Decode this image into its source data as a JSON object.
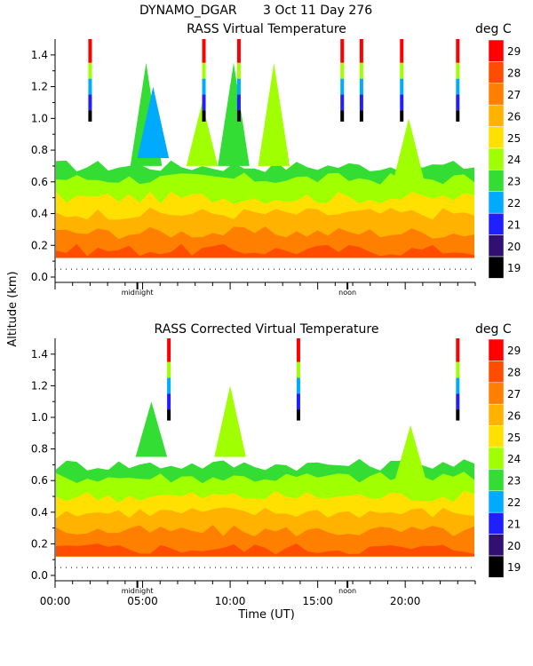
{
  "header": {
    "station": "DYNAMO_DGAR",
    "date": "3 Oct 11 Day 276"
  },
  "shared": {
    "ylabel": "Altitude (km)",
    "xlabel": "Time (UT)",
    "x_ticks": [
      "00:00",
      "05:00",
      "10:00",
      "15:00",
      "20:00"
    ],
    "x_tick_hours": [
      0,
      5,
      10,
      15,
      20
    ],
    "marker_labels": [
      {
        "text": "midnight",
        "hour": 4.7
      },
      {
        "text": "noon",
        "hour": 16.7
      }
    ],
    "y_ticks": [
      "0.0",
      "0.2",
      "0.4",
      "0.6",
      "0.8",
      "1.0",
      "1.2",
      "1.4"
    ],
    "y_tick_values": [
      0.0,
      0.2,
      0.4,
      0.6,
      0.8,
      1.0,
      1.2,
      1.4
    ],
    "colorbar_unit": "deg C",
    "colorbar_levels": [
      "29",
      "28",
      "27",
      "26",
      "25",
      "24",
      "23",
      "22",
      "21",
      "20",
      "19"
    ],
    "colorbar_colors": [
      "#ff0000",
      "#ff4d00",
      "#ff8000",
      "#ffb300",
      "#ffe000",
      "#a0ff00",
      "#33dd33",
      "#00aaff",
      "#2020ff",
      "#301070",
      "#000000"
    ]
  },
  "chart_data": [
    {
      "type": "heatmap",
      "title": "RASS Virtual Temperature",
      "x_range_hours": [
        0,
        24
      ],
      "ylim": [
        0.0,
        1.5
      ],
      "layer_values_degC": [
        28,
        27,
        26,
        25,
        24,
        23
      ],
      "layer_top_altitudes_km": [
        0.17,
        0.28,
        0.4,
        0.5,
        0.62,
        0.7
      ],
      "colorbar_unit": "deg C"
    },
    {
      "type": "heatmap",
      "title": "RASS Corrected Virtual Temperature",
      "x_range_hours": [
        0,
        24
      ],
      "ylim": [
        0.0,
        1.5
      ],
      "layer_values_degC": [
        28,
        27,
        26,
        25,
        24,
        23
      ],
      "layer_top_altitudes_km": [
        0.17,
        0.28,
        0.4,
        0.5,
        0.62,
        0.7
      ],
      "colorbar_unit": "deg C"
    }
  ]
}
